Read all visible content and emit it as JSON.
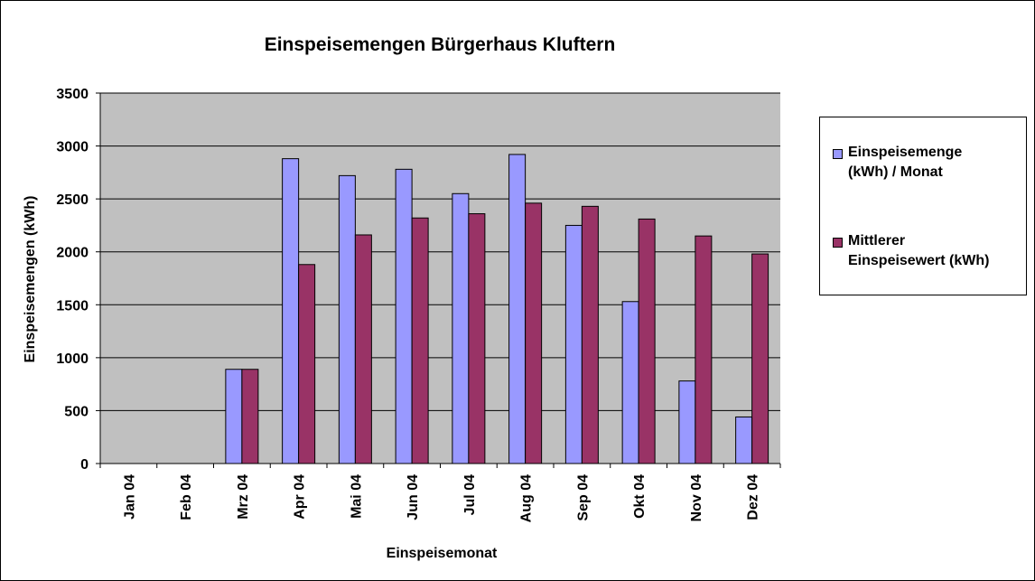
{
  "chart_data": {
    "type": "bar",
    "title": "Einspeisemengen Bürgerhaus Kluftern",
    "xlabel": "Einspeisemonat",
    "ylabel": "Einspeisemengen (kWh)",
    "ylim": [
      0,
      3500
    ],
    "yticks": [
      0,
      500,
      1000,
      1500,
      2000,
      2500,
      3000,
      3500
    ],
    "grid": true,
    "legend_position": "right",
    "plot_background": "#C0C0C0",
    "categories": [
      "Jan 04",
      "Feb 04",
      "Mrz 04",
      "Apr 04",
      "Mai 04",
      "Jun 04",
      "Jul 04",
      "Aug 04",
      "Sep 04",
      "Okt 04",
      "Nov 04",
      "Dez 04"
    ],
    "series": [
      {
        "name": "Einspeisemenge (kWh) / Monat",
        "name_lines": [
          "Einspeisemenge",
          "(kWh) / Monat"
        ],
        "color": "#9999FF",
        "values": [
          0,
          0,
          890,
          2880,
          2720,
          2780,
          2550,
          2920,
          2250,
          1530,
          780,
          440
        ]
      },
      {
        "name": "Mittlerer Einspeisewert (kWh)",
        "name_lines": [
          "Mittlerer",
          "Einspeisewert (kWh)"
        ],
        "color": "#993366",
        "values": [
          0,
          0,
          890,
          1880,
          2160,
          2320,
          2360,
          2460,
          2430,
          2310,
          2150,
          1980
        ]
      }
    ]
  }
}
